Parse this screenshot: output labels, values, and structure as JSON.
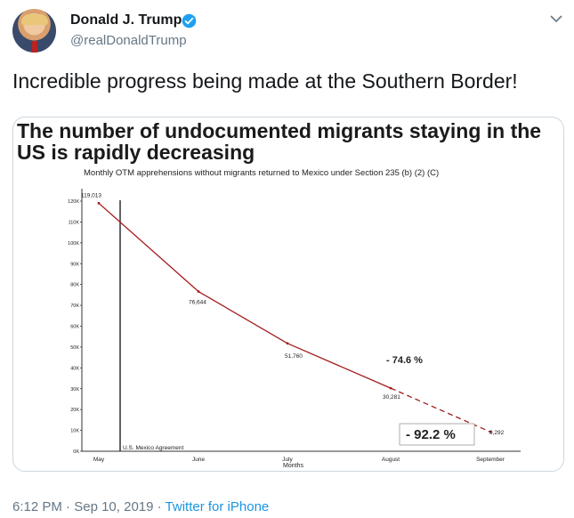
{
  "author": {
    "name": "Donald J. Trump",
    "handle": "@realDonaldTrump",
    "verified": true
  },
  "tweet": {
    "text": "Incredible progress being made at the Southern Border!",
    "time": "6:12 PM",
    "date": "Sep 10, 2019",
    "source": "Twitter for iPhone",
    "separator": "·"
  },
  "chart_data": {
    "type": "line",
    "title": "The number of undocumented migrants staying in the US is rapidly decreasing",
    "title_line1": "The number of undocumented migrants staying in the",
    "title_line2": "US is rapidly decreasing",
    "subtitle": "Monthly OTM apprehensions without migrants returned to Mexico under Section 235 (b) (2) (C)",
    "xlabel": "Months",
    "categories": [
      "May",
      "June",
      "July",
      "August",
      "September"
    ],
    "values": [
      119013,
      76644,
      51760,
      30281,
      9292
    ],
    "value_labels": [
      "119,013",
      "76,644",
      "51,760",
      "30,281",
      "9,292"
    ],
    "y_ticks": [
      "0K",
      "10K",
      "20K",
      "30K",
      "40K",
      "50K",
      "60K",
      "70K",
      "80K",
      "90K",
      "100K",
      "110K",
      "120K"
    ],
    "ylim": [
      0,
      120000
    ],
    "annotations": {
      "agreement": "U.S. Mexico Agreement",
      "pct1": "- 74.6 %",
      "pct2": "- 92.2 %"
    },
    "line_color": "#a31d1d",
    "grid": false
  }
}
